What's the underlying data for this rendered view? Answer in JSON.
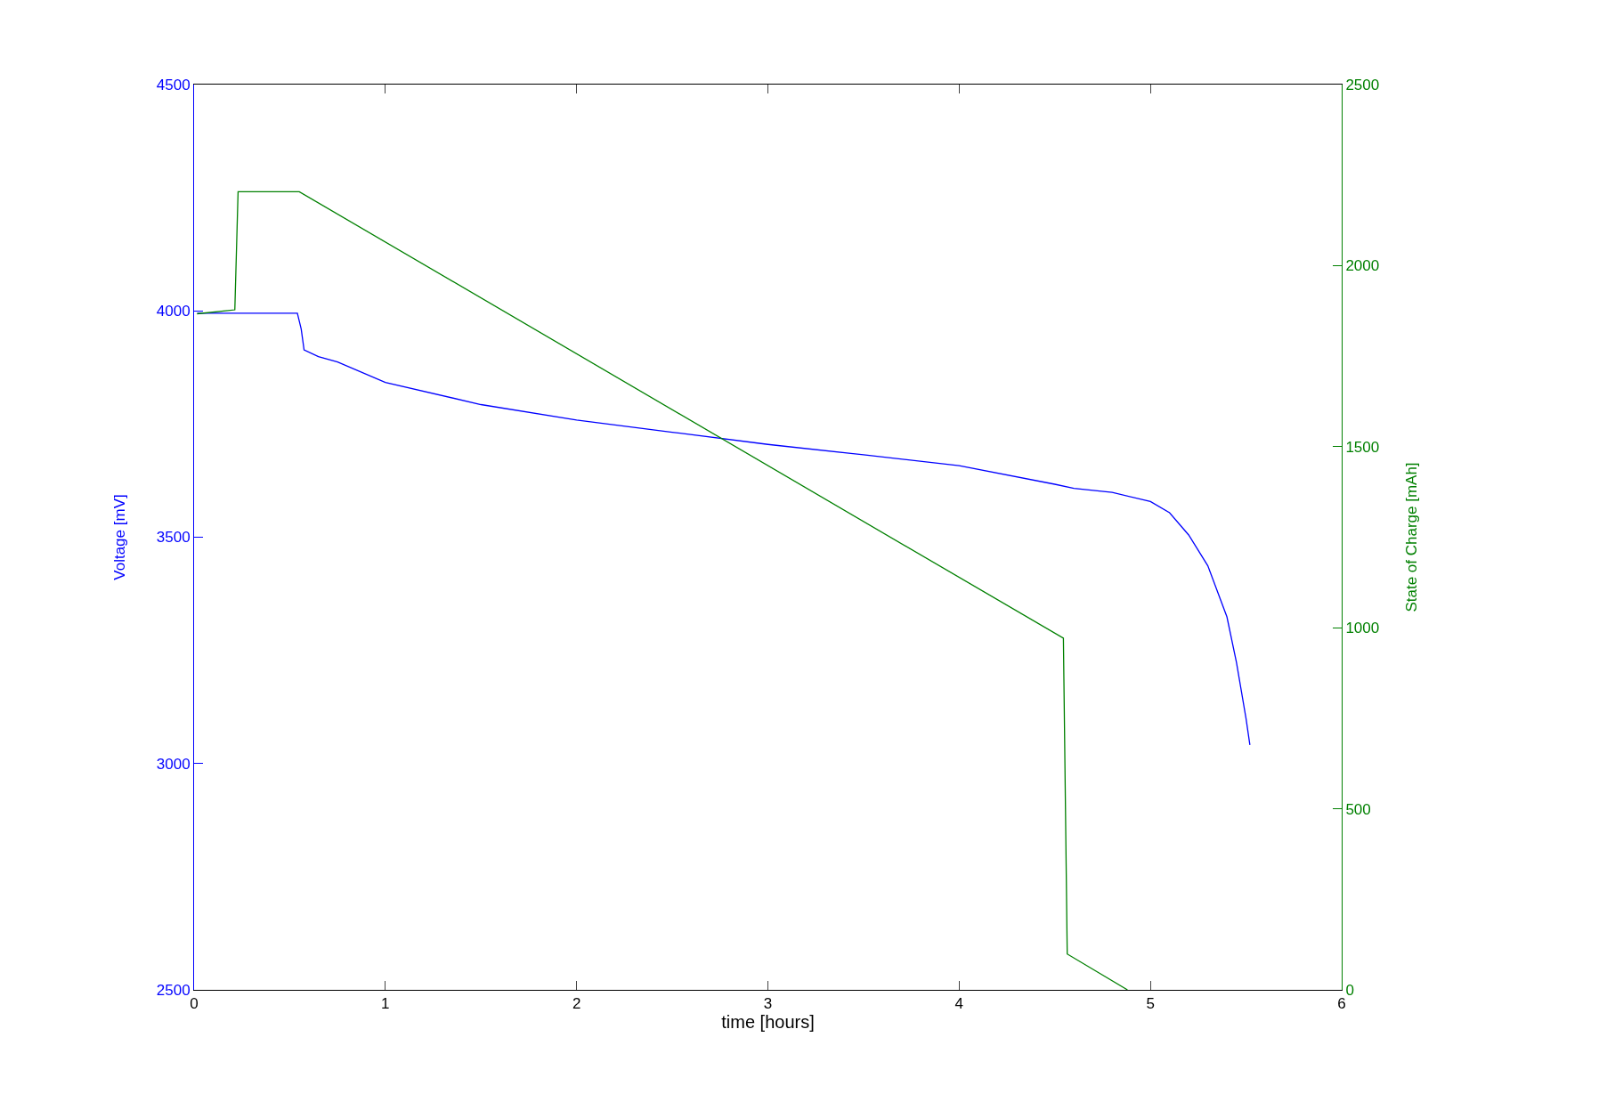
{
  "chart_data": {
    "type": "line",
    "xlabel": "time [hours]",
    "ylabel": "Voltage [mV]",
    "y2label": "State of Charge [mAh]",
    "xlim": [
      0,
      6
    ],
    "xticks": [
      0,
      1,
      2,
      3,
      4,
      5,
      6
    ],
    "ylim": [
      2500,
      4500
    ],
    "yticks": [
      2500,
      3000,
      3500,
      4000,
      4500
    ],
    "y2lim": [
      0,
      2500
    ],
    "y2ticks": [
      0,
      500,
      1000,
      1500,
      2000,
      2500
    ],
    "line_style": "solid",
    "marker": "none",
    "series": [
      {
        "color": "#0000ff",
        "x": [
          0.016,
          0.3,
          0.54,
          0.56,
          0.575,
          0.65,
          0.75,
          1.0,
          1.5,
          2.0,
          2.5,
          3.0,
          3.5,
          4.0,
          4.5,
          4.6,
          4.8,
          5.0,
          5.1,
          5.2,
          5.3,
          5.4,
          5.45,
          5.5,
          5.52
        ],
        "values": [
          3995,
          3995,
          3995,
          3960,
          3914,
          3899,
          3887,
          3842,
          3793,
          3759,
          3732,
          3705,
          3682,
          3658,
          3617,
          3608,
          3599,
          3579,
          3554,
          3505,
          3437,
          3324,
          3223,
          3099,
          3041
        ]
      },
      {
        "color": "#008000",
        "axis": "y2",
        "x": [
          0.016,
          0.213,
          0.23,
          0.55,
          4.545,
          4.565,
          4.88
        ],
        "values": [
          1867,
          1878,
          2204,
          2204,
          971,
          99,
          0
        ]
      }
    ]
  }
}
